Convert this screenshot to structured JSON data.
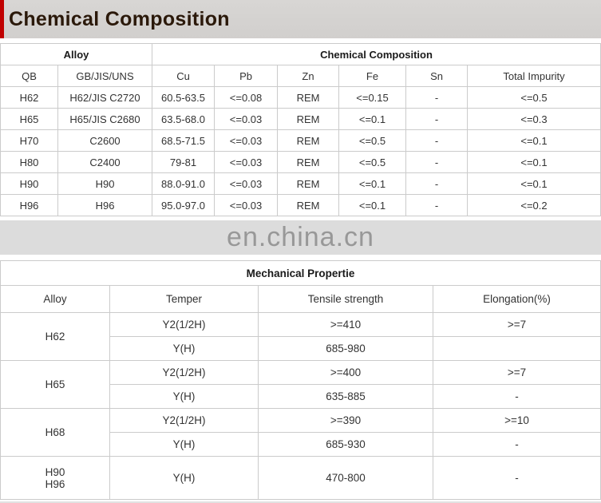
{
  "page": {
    "title": "Chemical Composition",
    "watermark": "en.china.cn"
  },
  "colors": {
    "accent_red": "#c00000",
    "title_text": "#2b190a",
    "header_band_bg": "#d5d3d1",
    "table_border": "#cbcbcb",
    "watermark_bg": "#dcdcdc",
    "watermark_text": "#989898",
    "cell_text": "#333333"
  },
  "chem_table": {
    "group_headers": [
      {
        "label": "Alloy",
        "colspan": 2
      },
      {
        "label": "Chemical Composition",
        "colspan": 6
      }
    ],
    "columns": [
      "QB",
      "GB/JIS/UNS",
      "Cu",
      "Pb",
      "Zn",
      "Fe",
      "Sn",
      "Total Impurity"
    ],
    "rows": [
      [
        "H62",
        "H62/JIS C2720",
        "60.5-63.5",
        "<=0.08",
        "REM",
        "<=0.15",
        "-",
        "<=0.5"
      ],
      [
        "H65",
        "H65/JIS C2680",
        "63.5-68.0",
        "<=0.03",
        "REM",
        "<=0.1",
        "-",
        "<=0.3"
      ],
      [
        "H70",
        "C2600",
        "68.5-71.5",
        "<=0.03",
        "REM",
        "<=0.5",
        "-",
        "<=0.1"
      ],
      [
        "H80",
        "C2400",
        "79-81",
        "<=0.03",
        "REM",
        "<=0.5",
        "-",
        "<=0.1"
      ],
      [
        "H90",
        "H90",
        "88.0-91.0",
        "<=0.03",
        "REM",
        "<=0.1",
        "-",
        "<=0.1"
      ],
      [
        "H96",
        "H96",
        "95.0-97.0",
        "<=0.03",
        "REM",
        "<=0.1",
        "-",
        "<=0.2"
      ]
    ]
  },
  "mech_table": {
    "title": "Mechanical Propertie",
    "columns": [
      "Alloy",
      "Temper",
      "Tensile strength",
      "Elongation(%)"
    ],
    "groups": [
      {
        "alloy": "H62",
        "rows": [
          [
            "Y2(1/2H)",
            ">=410",
            ">=7"
          ],
          [
            "Y(H)",
            "685-980",
            ""
          ]
        ]
      },
      {
        "alloy": "H65",
        "rows": [
          [
            "Y2(1/2H)",
            ">=400",
            ">=7"
          ],
          [
            "Y(H)",
            "635-885",
            "-"
          ]
        ]
      },
      {
        "alloy": "H68",
        "rows": [
          [
            "Y2(1/2H)",
            ">=390",
            ">=10"
          ],
          [
            "Y(H)",
            "685-930",
            "-"
          ]
        ]
      },
      {
        "alloy": "H90\nH96",
        "rows": [
          [
            "Y(H)",
            "470-800",
            "-"
          ]
        ]
      }
    ]
  }
}
